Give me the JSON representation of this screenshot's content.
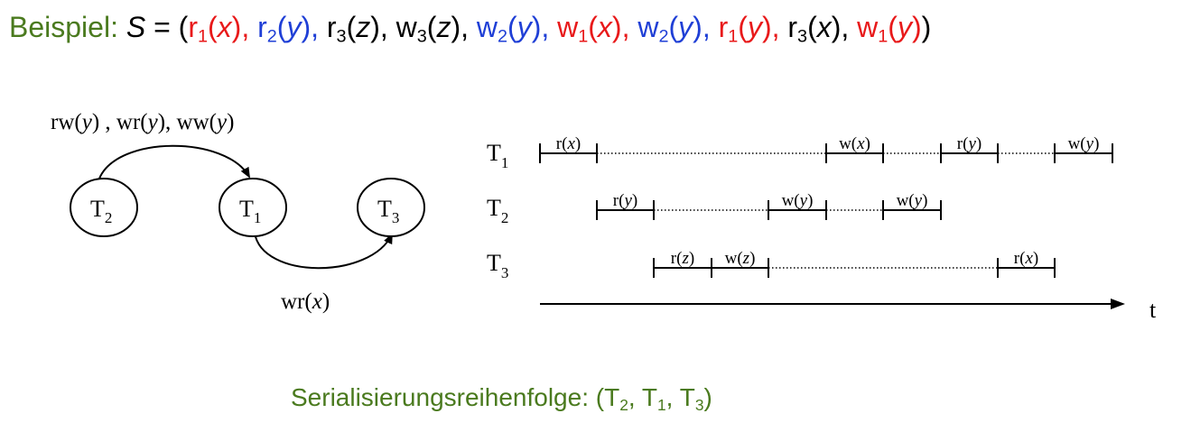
{
  "header": {
    "lead": "Beispiel:",
    "schedule_name": "S",
    "equals_open": " = (",
    "close": ")",
    "ops": [
      {
        "op": "r",
        "idx": "1",
        "obj": "x",
        "color": "#e8191a"
      },
      {
        "op": "r",
        "idx": "2",
        "obj": "y",
        "color": "#1f3fd6"
      },
      {
        "op": "r",
        "idx": "3",
        "obj": "z",
        "color": "#000000"
      },
      {
        "op": "w",
        "idx": "3",
        "obj": "z",
        "color": "#000000"
      },
      {
        "op": "w",
        "idx": "2",
        "obj": "y",
        "color": "#1f3fd6"
      },
      {
        "op": "w",
        "idx": "1",
        "obj": "x",
        "color": "#e8191a"
      },
      {
        "op": "w",
        "idx": "2",
        "obj": "y",
        "color": "#1f3fd6"
      },
      {
        "op": "r",
        "idx": "1",
        "obj": "y",
        "color": "#e8191a"
      },
      {
        "op": "r",
        "idx": "3",
        "obj": "x",
        "color": "#000000"
      },
      {
        "op": "w",
        "idx": "1",
        "obj": "y",
        "color": "#e8191a"
      }
    ]
  },
  "graph": {
    "nodes": [
      {
        "id": "T2",
        "base": "T",
        "sub": "2"
      },
      {
        "id": "T1",
        "base": "T",
        "sub": "1"
      },
      {
        "id": "T3",
        "base": "T",
        "sub": "3"
      }
    ],
    "edge_top_label": {
      "p1": "rw(",
      "v1": "y",
      "p2": ") , wr(",
      "v2": "y",
      "p3": "), ww(",
      "v3": "y",
      "p4": ")"
    },
    "edge_bottom_label": {
      "p1": "wr(",
      "v1": "x",
      "p2": ")"
    }
  },
  "timeline": {
    "rows": [
      {
        "base": "T",
        "sub": "1",
        "ops": [
          {
            "op": "r",
            "var": "x"
          },
          {
            "op": "w",
            "var": "x"
          },
          {
            "op": "r",
            "var": "y"
          },
          {
            "op": "w",
            "var": "y"
          }
        ]
      },
      {
        "base": "T",
        "sub": "2",
        "ops": [
          {
            "op": "r",
            "var": "y"
          },
          {
            "op": "w",
            "var": "y"
          },
          {
            "op": "w",
            "var": "y"
          }
        ]
      },
      {
        "base": "T",
        "sub": "3",
        "ops": [
          {
            "op": "r",
            "var": "z"
          },
          {
            "op": "w",
            "var": "z"
          },
          {
            "op": "r",
            "var": "x"
          }
        ]
      }
    ],
    "axis_label": "t"
  },
  "footer": {
    "text": "Serialisierungsreihenfolge: (",
    "order": [
      {
        "base": "T",
        "sub": "2"
      },
      {
        "base": "T",
        "sub": "1"
      },
      {
        "base": "T",
        "sub": "3"
      }
    ],
    "sep": ", ",
    "close": ")"
  },
  "colors": {
    "accent_green": "#4a7a1e",
    "red": "#e8191a",
    "blue": "#1f3fd6",
    "black": "#000000"
  }
}
